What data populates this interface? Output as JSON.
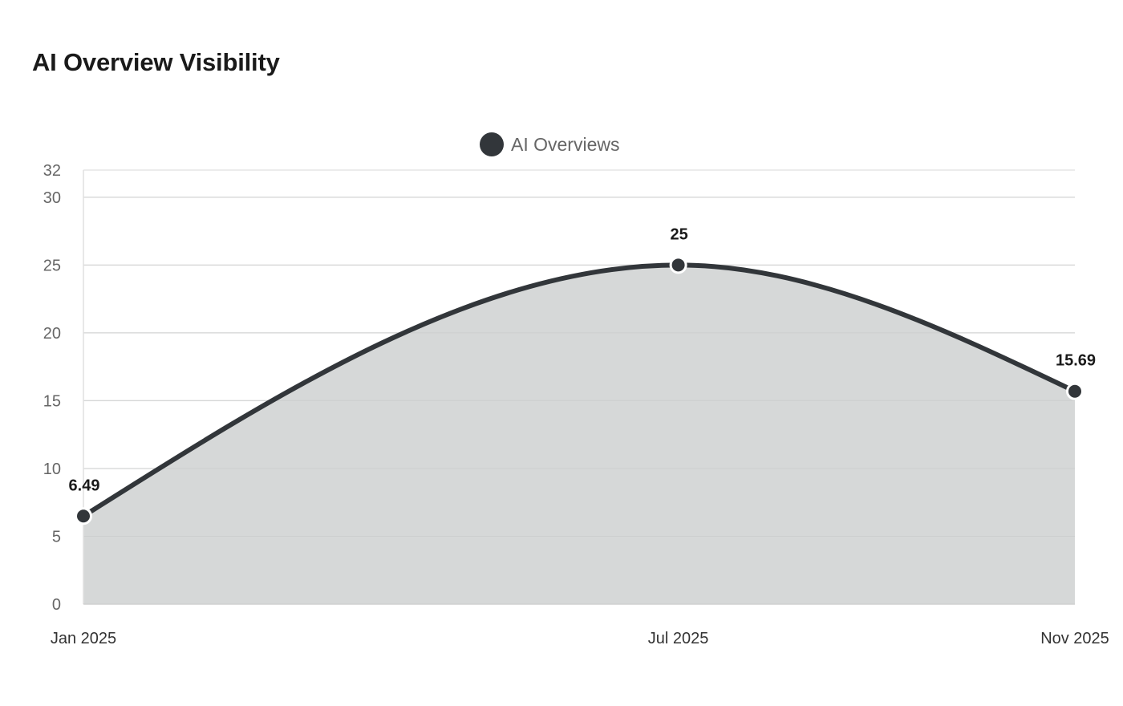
{
  "chart_data": {
    "type": "area",
    "title": "AI Overview Visibility",
    "xlabel": "",
    "ylabel": "",
    "categories": [
      "Jan 2025",
      "Jul 2025",
      "Nov 2025"
    ],
    "x_months": [
      1,
      7,
      11
    ],
    "series": [
      {
        "name": "AI Overviews",
        "values": [
          6.49,
          25,
          15.69
        ],
        "color": "#32363a",
        "fill_color": "#d4d6d6"
      }
    ],
    "data_labels": [
      "6.49",
      "25",
      "15.69"
    ],
    "yticks": [
      0,
      5,
      10,
      15,
      20,
      25,
      30,
      32
    ],
    "ylim": [
      0,
      32
    ],
    "grid": true,
    "legend_position": "top-center",
    "grid_color": "#e6e6e6"
  }
}
